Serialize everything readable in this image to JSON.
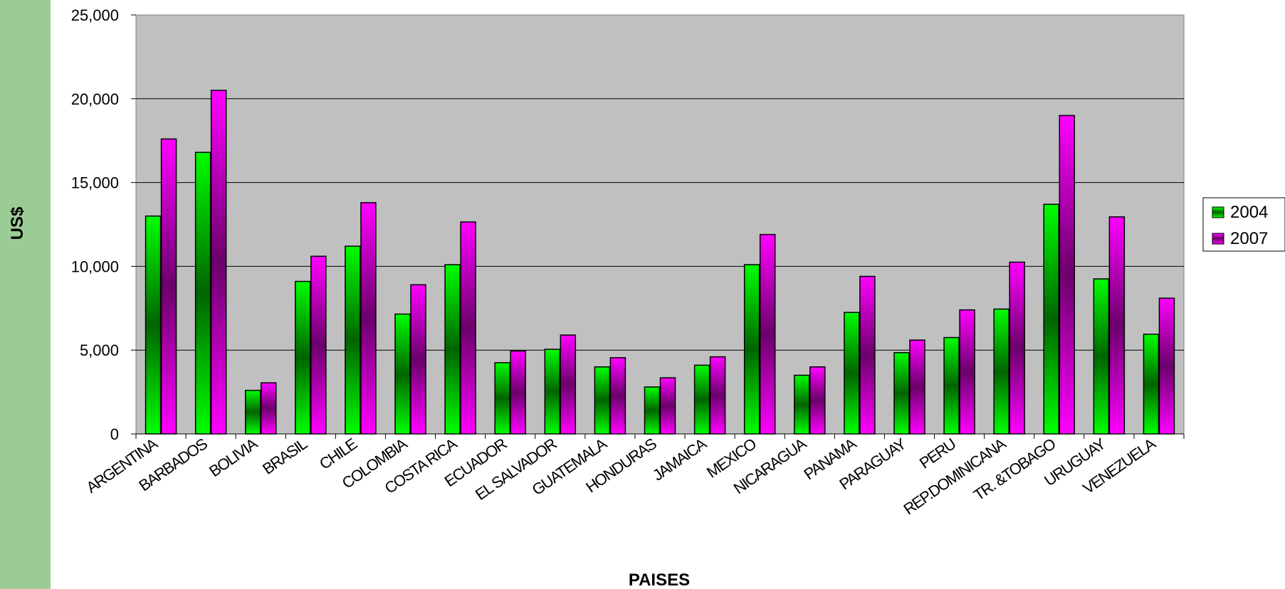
{
  "chart_data": {
    "type": "bar",
    "title": "",
    "xlabel": "PAISES",
    "ylabel": "US$",
    "ylim": [
      0,
      25000
    ],
    "yticks": [
      "0",
      "5,000",
      "10,000",
      "15,000",
      "20,000",
      "25,000"
    ],
    "grid": true,
    "legend_position": "right",
    "categories": [
      "ARGENTINA",
      "BARBADOS",
      "BOLIVIA",
      "BRASIL",
      "CHILE",
      "COLOMBIA",
      "COSTA RICA",
      "ECUADOR",
      "EL SALVADOR",
      "GUATEMALA",
      "HONDURAS",
      "JAMAICA",
      "MEXICO",
      "NICARAGUA",
      "PANAMA",
      "PARAGUAY",
      "PERU",
      "REP.DOMINICANA",
      "TR. &TOBAGO",
      "URUGUAY",
      "VENEZUELA"
    ],
    "series": [
      {
        "name": "2004",
        "color": "#00ff00",
        "dark": "#006400",
        "values": [
          13000,
          16800,
          2600,
          9100,
          11200,
          7150,
          10100,
          4250,
          5050,
          4000,
          2800,
          4100,
          10100,
          3500,
          7250,
          4850,
          5750,
          7450,
          13700,
          9250,
          5950
        ]
      },
      {
        "name": "2007",
        "color": "#ff00ff",
        "dark": "#6b006b",
        "values": [
          17600,
          20500,
          3050,
          10600,
          13800,
          8900,
          12650,
          4950,
          5900,
          4550,
          3350,
          4600,
          11900,
          4000,
          9400,
          5600,
          7400,
          10250,
          19000,
          12950,
          8100
        ]
      }
    ]
  }
}
